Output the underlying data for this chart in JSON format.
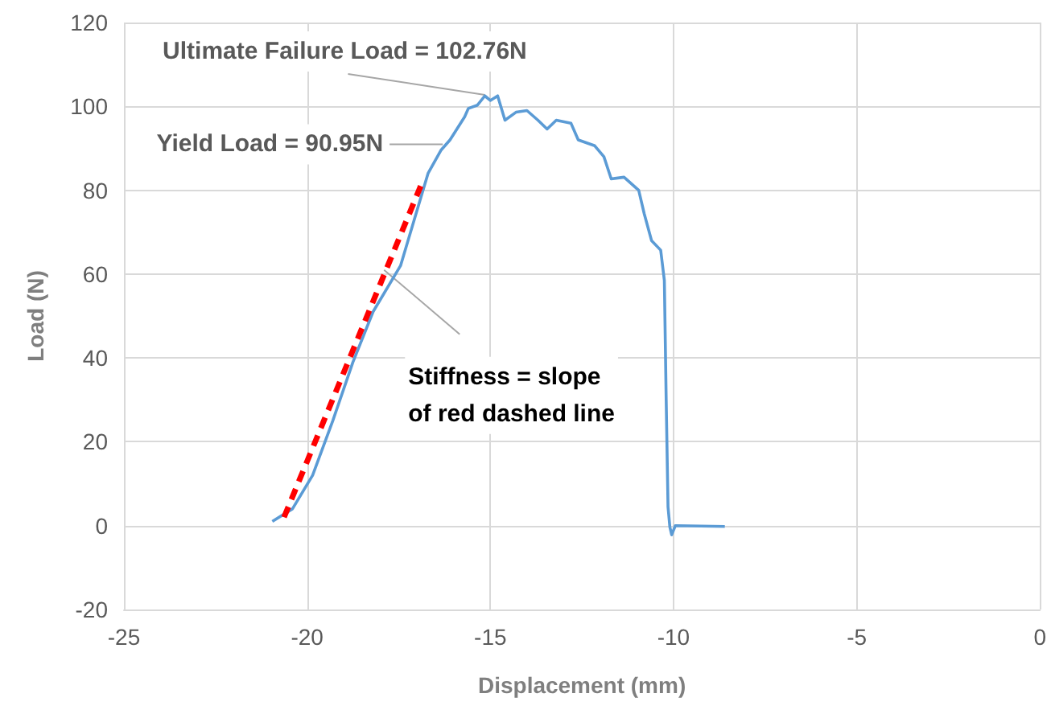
{
  "chart_data": {
    "type": "line",
    "xlabel": "Displacement (mm)",
    "ylabel": "Load (N)",
    "xlim": [
      -25,
      0
    ],
    "xticks": [
      -25,
      -20,
      -15,
      -10,
      -5,
      0
    ],
    "ylim": [
      -20,
      120
    ],
    "yticks": [
      -20,
      0,
      20,
      40,
      60,
      80,
      100,
      120
    ],
    "grid": true,
    "marker": "none",
    "series": [
      {
        "color": "#5b9bd5",
        "line_style": "solid",
        "x": [
          -20.95,
          -20.4,
          -19.85,
          -19.3,
          -18.75,
          -18.2,
          -17.45,
          -16.7,
          -16.35,
          -16.1,
          -15.7,
          -15.6,
          -15.35,
          -15.15,
          -15,
          -14.8,
          -14.6,
          -14.3,
          -14,
          -13.7,
          -13.45,
          -13.2,
          -12.8,
          -12.6,
          -12.15,
          -11.9,
          -11.7,
          -11.35,
          -10.95,
          -10.8,
          -10.6,
          -10.35,
          -10.25,
          -10.2,
          -10.15,
          -10.1,
          -10.05,
          -9.95,
          -8.6
        ],
        "values": [
          1,
          4,
          12,
          25,
          39,
          51,
          62,
          84,
          89.5,
          92,
          97.5,
          99.5,
          100.3,
          102.5,
          101.4,
          102.5,
          96.7,
          98.6,
          99,
          96.7,
          94.6,
          96.7,
          96,
          92,
          90.6,
          88,
          82.7,
          83.1,
          80,
          74.4,
          68,
          65.7,
          58.5,
          30,
          4.5,
          -0.3,
          -2.2,
          0,
          -0.2
        ]
      },
      {
        "color": "#ff0000",
        "line_style": "dashed",
        "x": [
          -20.63,
          -16.9
        ],
        "values": [
          2,
          81
        ]
      }
    ],
    "annotations": [
      {
        "text": "Ultimate Failure Load = 102.76N",
        "x": -15.15,
        "y": 102.76
      },
      {
        "text": "Yield Load = 90.95N",
        "x": -16.3,
        "y": 90.95
      },
      {
        "text": "Stiffness = slope\nof red dashed line",
        "x": -17.9,
        "y": 61
      }
    ]
  }
}
